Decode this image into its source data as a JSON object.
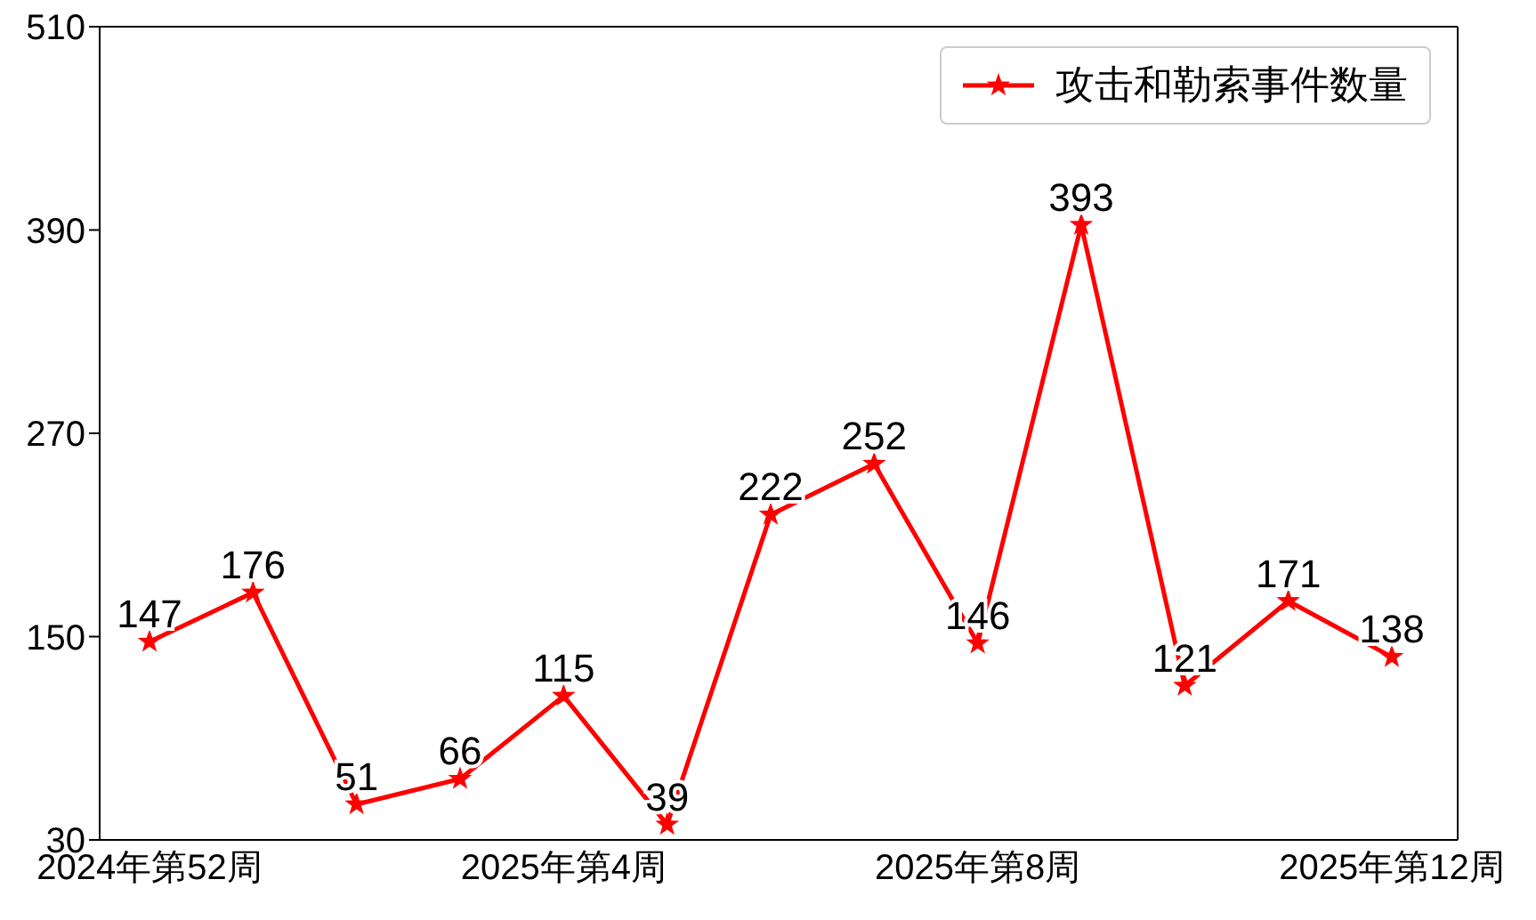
{
  "chart_data": {
    "type": "line",
    "categories": [
      "2024年第52周",
      null,
      null,
      null,
      "2025年第4周",
      null,
      null,
      null,
      "2025年第8周",
      null,
      null,
      null,
      "2025年第12周"
    ],
    "series": [
      {
        "name": "攻击和勒索事件数量",
        "color": "#ff0000",
        "values": [
          147,
          176,
          51,
          66,
          115,
          39,
          222,
          252,
          146,
          393,
          121,
          171,
          138
        ]
      }
    ],
    "ylim": [
      30,
      510
    ],
    "yticks": [
      30,
      150,
      270,
      390,
      510
    ],
    "data_labels": true,
    "legend": "top right",
    "marker": "star",
    "grid": false
  }
}
